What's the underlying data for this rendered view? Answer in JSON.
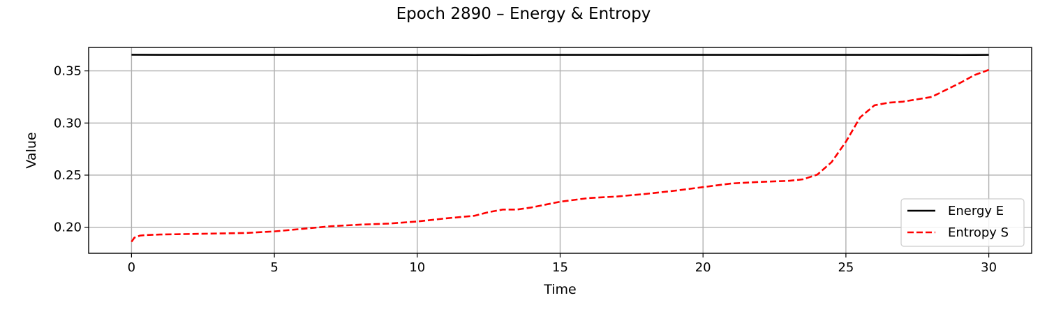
{
  "chart_data": {
    "type": "line",
    "title": "Epoch 2890 – Energy & Entropy",
    "xlabel": "Time",
    "ylabel": "Value",
    "xlim": [
      -1.5,
      31.5
    ],
    "ylim": [
      0.175,
      0.3725
    ],
    "xticks": [
      0,
      5,
      10,
      15,
      20,
      25,
      30
    ],
    "xtick_labels": [
      "0",
      "5",
      "10",
      "15",
      "20",
      "25",
      "30"
    ],
    "yticks": [
      0.2,
      0.25,
      0.3,
      0.35
    ],
    "ytick_labels": [
      "0.20",
      "0.25",
      "0.30",
      "0.35"
    ],
    "grid": true,
    "legend_position": "lower-right",
    "series": [
      {
        "name": "Energy E",
        "color": "#000000",
        "style": "solid",
        "x": [
          0,
          1,
          2,
          3,
          4,
          5,
          6,
          7,
          8,
          9,
          10,
          11,
          12,
          13,
          14,
          15,
          16,
          17,
          18,
          19,
          20,
          21,
          22,
          23,
          24,
          25,
          26,
          27,
          28,
          29,
          30
        ],
        "y": [
          0.3655,
          0.3654,
          0.3654,
          0.3654,
          0.3654,
          0.3654,
          0.3654,
          0.3654,
          0.3654,
          0.3654,
          0.3654,
          0.3654,
          0.3653,
          0.3654,
          0.3654,
          0.3654,
          0.3654,
          0.3654,
          0.3654,
          0.3654,
          0.3654,
          0.3654,
          0.3654,
          0.3654,
          0.3654,
          0.3654,
          0.3654,
          0.3654,
          0.3654,
          0.3653,
          0.3654
        ]
      },
      {
        "name": "Entropy S",
        "color": "#ff0000",
        "style": "dashed",
        "x": [
          0,
          0.1,
          0.3,
          0.5,
          1,
          2,
          3,
          4,
          5,
          6,
          7,
          8,
          9,
          10,
          11,
          12,
          12.5,
          13,
          13.5,
          14,
          15,
          16,
          17,
          18,
          19,
          20,
          21,
          22,
          23,
          23.5,
          24,
          24.5,
          25,
          25.5,
          26,
          26.5,
          27,
          28,
          29,
          29.5,
          30
        ],
        "y": [
          0.186,
          0.19,
          0.192,
          0.1925,
          0.193,
          0.1935,
          0.194,
          0.1945,
          0.196,
          0.1985,
          0.201,
          0.2025,
          0.2035,
          0.2055,
          0.2085,
          0.211,
          0.2145,
          0.217,
          0.217,
          0.219,
          0.2245,
          0.228,
          0.2295,
          0.232,
          0.235,
          0.2385,
          0.242,
          0.2435,
          0.2445,
          0.246,
          0.2505,
          0.2625,
          0.282,
          0.3055,
          0.317,
          0.3195,
          0.3205,
          0.325,
          0.3385,
          0.346,
          0.351
        ]
      }
    ]
  }
}
